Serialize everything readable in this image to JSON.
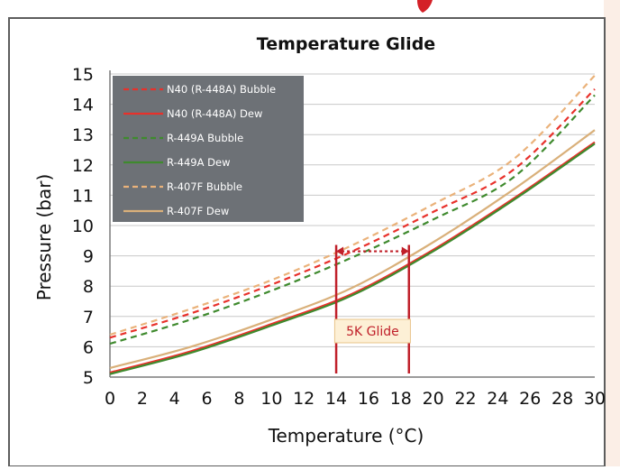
{
  "chart_data": {
    "type": "line",
    "title": "Temperature Glide",
    "xlabel": "Temperature (°C)",
    "ylabel": "Pressure (bar)",
    "xlim": [
      0,
      30
    ],
    "ylim": [
      5,
      15
    ],
    "x_ticks": [
      "0",
      "2",
      "4",
      "6",
      "8",
      "10",
      "12",
      "14",
      "16",
      "18",
      "20",
      "22",
      "24",
      "26",
      "28",
      "30"
    ],
    "y_ticks": [
      "5",
      "6",
      "7",
      "8",
      "9",
      "10",
      "11",
      "12",
      "13",
      "14",
      "15"
    ],
    "grid": true,
    "legend_position": "top-left",
    "x": [
      0,
      5,
      10,
      15,
      20,
      25,
      30
    ],
    "series": [
      {
        "name": "N40 (R-448A) Bubble",
        "color": "#e8312b",
        "style": "dashed",
        "values": [
          6.3,
          7.1,
          8.05,
          9.15,
          10.45,
          11.85,
          14.5
        ]
      },
      {
        "name": "N40 (R-448A) Dew",
        "color": "#e8312b",
        "style": "solid",
        "values": [
          5.15,
          5.85,
          6.75,
          7.75,
          9.2,
          10.9,
          12.75
        ]
      },
      {
        "name": "R-449A Bubble",
        "color": "#3f8a2e",
        "style": "dashed",
        "values": [
          6.1,
          6.9,
          7.85,
          8.95,
          10.2,
          11.6,
          14.3
        ]
      },
      {
        "name": "R-449A Dew",
        "color": "#3f8a2e",
        "style": "solid",
        "values": [
          5.1,
          5.8,
          6.7,
          7.7,
          9.15,
          10.85,
          12.7
        ]
      },
      {
        "name": "R-407F Bubble",
        "color": "#eab27a",
        "style": "dashed",
        "values": [
          6.4,
          7.25,
          8.2,
          9.35,
          10.7,
          12.2,
          14.95
        ]
      },
      {
        "name": "R-407F Dew",
        "color": "#d9b07a",
        "style": "solid",
        "values": [
          5.3,
          6.0,
          6.9,
          7.95,
          9.45,
          11.2,
          13.15
        ]
      }
    ],
    "annotations": [
      {
        "label": "5K Glide",
        "from_x": 14,
        "to_x": 18.5,
        "at_y": 9.15,
        "color": "#c0202a"
      }
    ]
  },
  "colors": {
    "frame": "#5d5d5d",
    "legend_bg": "#6d7176",
    "grid": "#c8c8c8",
    "annotation_box": "#fdf0d6",
    "accent": "#c0202a"
  }
}
